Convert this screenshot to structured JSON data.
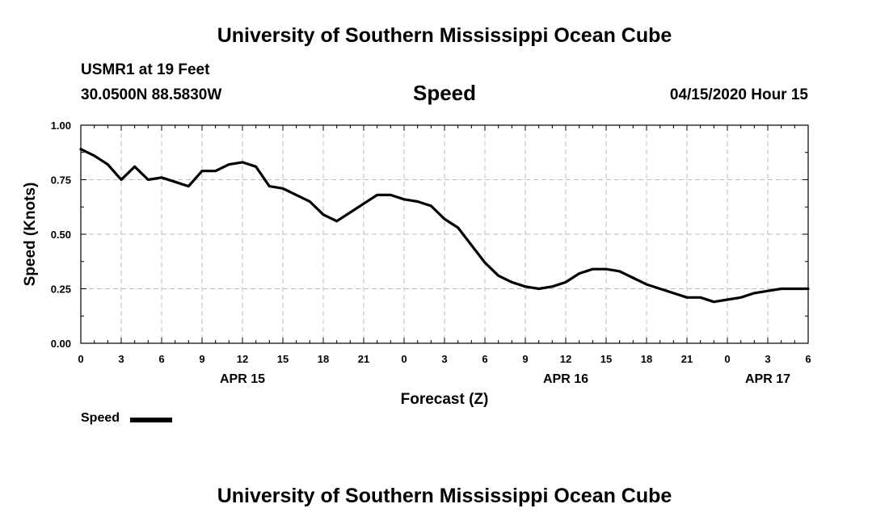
{
  "header": {
    "title": "University of Southern Mississippi Ocean Cube",
    "station": "USMR1 at 19 Feet",
    "coordinates": "30.0500N 88.5830W",
    "variable": "Speed",
    "valid_time": "04/15/2020 Hour 15"
  },
  "footer": {
    "title": "University of Southern Mississippi Ocean Cube"
  },
  "legend": {
    "label": "Speed",
    "color": "#000000"
  },
  "chart_data": {
    "type": "line",
    "title": "Speed",
    "xlabel": "Forecast (Z)",
    "ylabel": "Speed (Knots)",
    "xlim": [
      0,
      54
    ],
    "ylim": [
      0,
      1
    ],
    "grid": true,
    "legend_position": "bottom-left",
    "y_ticks": [
      "0.00",
      "0.25",
      "0.50",
      "0.75",
      "1.00"
    ],
    "x_tick_labels": [
      "0",
      "3",
      "6",
      "9",
      "12",
      "15",
      "18",
      "21",
      "0",
      "3",
      "6",
      "9",
      "12",
      "15",
      "18",
      "21",
      "0",
      "3",
      "6"
    ],
    "date_labels": [
      {
        "label": "APR 15",
        "at_hour": 12
      },
      {
        "label": "APR 16",
        "at_hour": 36
      },
      {
        "label": "APR 17",
        "at_hour": 51
      }
    ],
    "series": [
      {
        "name": "Speed",
        "color": "#000000",
        "x": [
          0,
          1,
          2,
          3,
          4,
          5,
          6,
          7,
          8,
          9,
          10,
          11,
          12,
          13,
          14,
          15,
          16,
          17,
          18,
          19,
          20,
          21,
          22,
          23,
          24,
          25,
          26,
          27,
          28,
          29,
          30,
          31,
          32,
          33,
          34,
          35,
          36,
          37,
          38,
          39,
          40,
          41,
          42,
          43,
          44,
          45,
          46,
          47,
          48,
          49,
          50,
          51,
          52,
          53,
          54
        ],
        "y": [
          0.89,
          0.86,
          0.82,
          0.75,
          0.81,
          0.75,
          0.76,
          0.74,
          0.72,
          0.79,
          0.79,
          0.82,
          0.83,
          0.81,
          0.72,
          0.71,
          0.68,
          0.65,
          0.59,
          0.56,
          0.6,
          0.64,
          0.68,
          0.68,
          0.66,
          0.65,
          0.63,
          0.57,
          0.53,
          0.45,
          0.37,
          0.31,
          0.28,
          0.26,
          0.25,
          0.26,
          0.28,
          0.32,
          0.34,
          0.34,
          0.33,
          0.3,
          0.27,
          0.25,
          0.23,
          0.21,
          0.21,
          0.19,
          0.2,
          0.21,
          0.23,
          0.24,
          0.25,
          0.25,
          0.25
        ]
      }
    ]
  }
}
